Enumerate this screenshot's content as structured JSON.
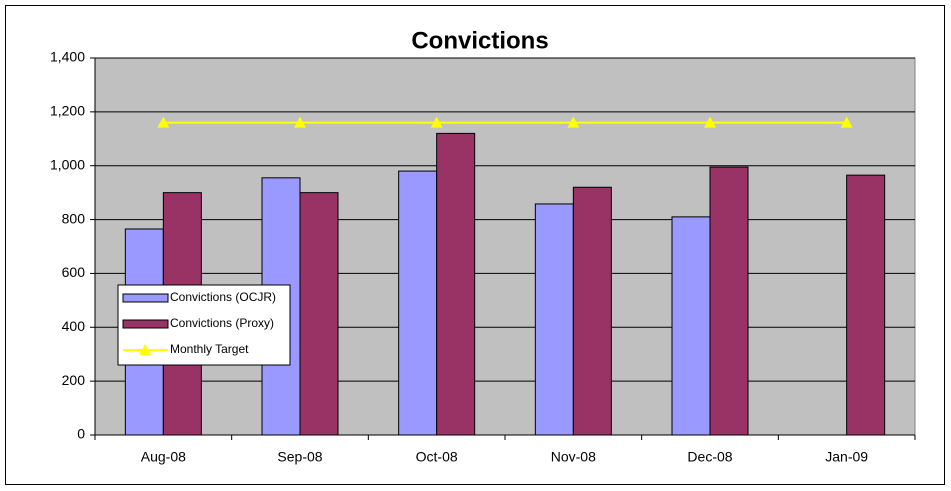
{
  "chart_data": {
    "type": "bar",
    "title": "Convictions",
    "categories": [
      "Aug-08",
      "Sep-08",
      "Oct-08",
      "Nov-08",
      "Dec-08",
      "Jan-09"
    ],
    "series": [
      {
        "name": "Convictions (OCJR)",
        "color": "#9999ff",
        "values": [
          765,
          955,
          980,
          858,
          810,
          null
        ]
      },
      {
        "name": "Convictions (Proxy)",
        "color": "#993366",
        "values": [
          900,
          900,
          1120,
          920,
          995,
          965
        ]
      },
      {
        "name": "Monthly Target",
        "type": "line",
        "color": "#ffff00",
        "values": [
          1160,
          1160,
          1160,
          1160,
          1160,
          1160
        ]
      }
    ],
    "ylim": [
      0,
      1400
    ],
    "yticks": [
      0,
      200,
      400,
      600,
      800,
      {
        "value": 1000,
        "label": "1,000"
      },
      {
        "value": 1200,
        "label": "1,200"
      },
      {
        "value": 1400,
        "label": "1,400"
      }
    ],
    "grid": true,
    "legend": "left"
  }
}
